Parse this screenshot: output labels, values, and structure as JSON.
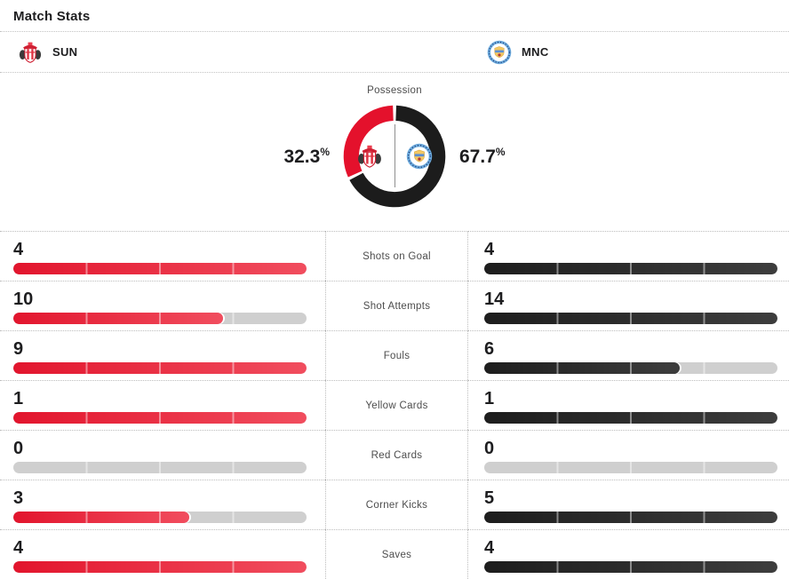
{
  "header": {
    "title": "Match Stats"
  },
  "teams": {
    "home": {
      "abbr": "SUN",
      "name": "Sunderland",
      "color": "#e2152d"
    },
    "away": {
      "abbr": "MNC",
      "name": "Manchester City",
      "color": "#1d1d1d"
    }
  },
  "possession": {
    "label": "Possession",
    "home_pct": 32.3,
    "away_pct": 67.7,
    "home_display": "32.3",
    "away_display": "67.7",
    "percent_sign": "%"
  },
  "stats": [
    {
      "label": "Shots on Goal",
      "home": 4,
      "away": 4
    },
    {
      "label": "Shot Attempts",
      "home": 10,
      "away": 14
    },
    {
      "label": "Fouls",
      "home": 9,
      "away": 6
    },
    {
      "label": "Yellow Cards",
      "home": 1,
      "away": 1
    },
    {
      "label": "Red Cards",
      "home": 0,
      "away": 0
    },
    {
      "label": "Corner Kicks",
      "home": 3,
      "away": 5
    },
    {
      "label": "Saves",
      "home": 4,
      "away": 4
    }
  ],
  "chart_data": [
    {
      "type": "pie",
      "style": "donut",
      "title": "Possession",
      "labels": [
        "SUN",
        "MNC"
      ],
      "values": [
        32.3,
        67.7
      ],
      "unit": "%",
      "colors": [
        "#e4112c",
        "#1c1c1c"
      ]
    },
    {
      "type": "bar",
      "title": "Match Stats",
      "orientation": "horizontal",
      "categories": [
        "Shots on Goal",
        "Shot Attempts",
        "Fouls",
        "Yellow Cards",
        "Red Cards",
        "Corner Kicks",
        "Saves"
      ],
      "series": [
        {
          "name": "SUN",
          "values": [
            4,
            10,
            9,
            1,
            0,
            3,
            4
          ],
          "color": "#e2152d"
        },
        {
          "name": "MNC",
          "values": [
            4,
            14,
            6,
            1,
            0,
            5,
            4
          ],
          "color": "#1d1d1d"
        }
      ],
      "note": "each bar filled proportionally to row max; empty remainder gray #cfcfcf"
    }
  ],
  "colors": {
    "home_bar_gradient": [
      "#e2152d",
      "#f14d5e"
    ],
    "away_bar_gradient": [
      "#1d1d1d",
      "#3d3d3d"
    ],
    "bar_track": "#cfcfcf",
    "dotted_divider": "#c3c3c3",
    "label_text": "#4d4d4d",
    "value_text": "#1d1d1f"
  },
  "icons": {
    "home_badge": "sunderland-crest-icon",
    "away_badge": "manchester-city-crest-icon"
  }
}
